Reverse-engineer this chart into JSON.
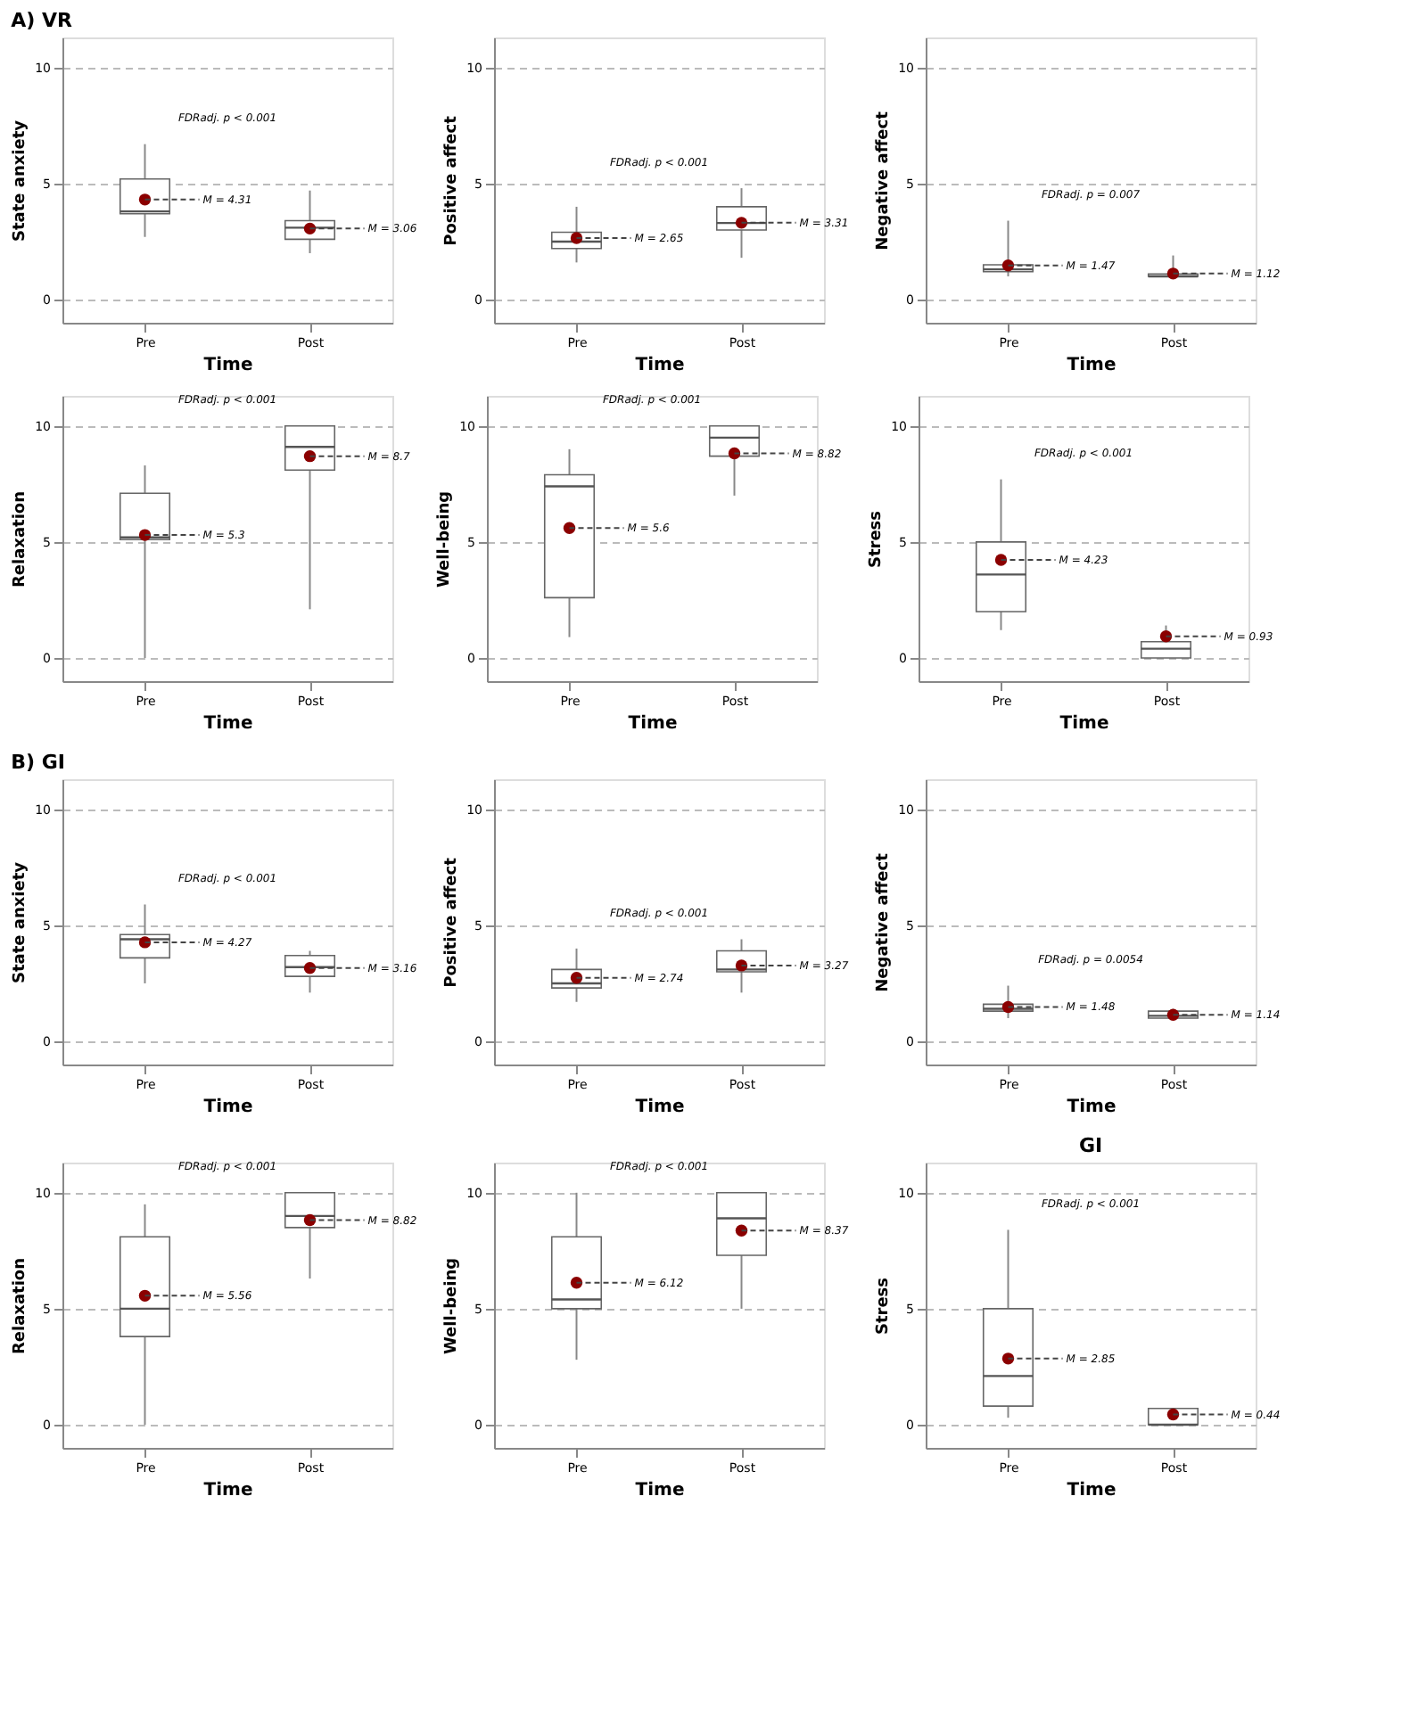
{
  "chart_data": [
    {
      "type": "box",
      "title": "A) VR",
      "categories": [
        "Pre",
        "Post"
      ],
      "xlabel": "Time",
      "ylabel": "State anxiety",
      "ylim": [
        -1,
        11.3
      ],
      "yticks": [
        0,
        5,
        10
      ],
      "grid": "y",
      "boxes": [
        {
          "low": 2.7,
          "q1": 3.7,
          "median": 3.8,
          "q3": 5.2,
          "high": 6.7,
          "mean": 4.31
        },
        {
          "low": 2.0,
          "q1": 2.6,
          "median": 3.1,
          "q3": 3.4,
          "high": 4.7,
          "mean": 3.06
        }
      ],
      "annotations": [
        "FDRadj. p < 0.001",
        {
          "text": "M = 4.31",
          "x": "Pre",
          "y": 4.31
        },
        {
          "text": "M = 3.06",
          "x": "Post",
          "y": 3.06
        }
      ]
    },
    {
      "type": "box",
      "categories": [
        "Pre",
        "Post"
      ],
      "xlabel": "Time",
      "ylabel": "Positive affect",
      "ylim": [
        -1,
        11.3
      ],
      "yticks": [
        0,
        5,
        10
      ],
      "grid": "y",
      "boxes": [
        {
          "low": 1.6,
          "q1": 2.2,
          "median": 2.5,
          "q3": 2.9,
          "high": 4.0,
          "mean": 2.65
        },
        {
          "low": 1.8,
          "q1": 3.0,
          "median": 3.3,
          "q3": 4.0,
          "high": 4.8,
          "mean": 3.31
        }
      ],
      "annotations": [
        "FDRadj. p < 0.001",
        {
          "text": "M = 2.65",
          "x": "Pre",
          "y": 2.65
        },
        {
          "text": "M = 3.31",
          "x": "Post",
          "y": 3.31
        }
      ]
    },
    {
      "type": "box",
      "categories": [
        "Pre",
        "Post"
      ],
      "xlabel": "Time",
      "ylabel": "Negative affect",
      "ylim": [
        -1,
        11.3
      ],
      "yticks": [
        0,
        5,
        10
      ],
      "grid": "y",
      "boxes": [
        {
          "low": 1.0,
          "q1": 1.2,
          "median": 1.3,
          "q3": 1.5,
          "high": 3.4,
          "mean": 1.47
        },
        {
          "low": 1.0,
          "q1": 1.0,
          "median": 1.0,
          "q3": 1.1,
          "high": 1.9,
          "mean": 1.12
        }
      ],
      "annotations": [
        "FDRadj. p = 0.007",
        {
          "text": "M = 1.47",
          "x": "Pre",
          "y": 1.47
        },
        {
          "text": "M = 1.12",
          "x": "Post",
          "y": 1.12
        }
      ]
    },
    {
      "type": "box",
      "categories": [
        "Pre",
        "Post"
      ],
      "xlabel": "Time",
      "ylabel": "Relaxation",
      "ylim": [
        -1,
        11.3
      ],
      "yticks": [
        0,
        5,
        10
      ],
      "grid": "y",
      "boxes": [
        {
          "low": 0.0,
          "q1": 5.1,
          "median": 5.2,
          "q3": 7.1,
          "high": 8.3,
          "mean": 5.3
        },
        {
          "low": 2.1,
          "q1": 8.1,
          "median": 9.1,
          "q3": 10.0,
          "high": 10.0,
          "mean": 8.7
        }
      ],
      "annotations": [
        "FDRadj. p < 0.001",
        {
          "text": "M = 5.3",
          "x": "Pre",
          "y": 5.3
        },
        {
          "text": "M = 8.7",
          "x": "Post",
          "y": 8.7
        }
      ]
    },
    {
      "type": "box",
      "categories": [
        "Pre",
        "Post"
      ],
      "xlabel": "Time",
      "ylabel": "Well-being",
      "ylim": [
        -1,
        11.3
      ],
      "yticks": [
        0,
        5,
        10
      ],
      "grid": "y",
      "boxes": [
        {
          "low": 0.9,
          "q1": 2.6,
          "median": 7.4,
          "q3": 7.9,
          "high": 9.0,
          "mean": 5.6
        },
        {
          "low": 7.0,
          "q1": 8.7,
          "median": 9.5,
          "q3": 10.0,
          "high": 10.0,
          "mean": 8.82
        }
      ],
      "annotations": [
        "FDRadj. p < 0.001",
        {
          "text": "M = 5.6",
          "x": "Pre",
          "y": 5.6
        },
        {
          "text": "M = 8.82",
          "x": "Post",
          "y": 8.82
        }
      ]
    },
    {
      "type": "box",
      "categories": [
        "Pre",
        "Post"
      ],
      "xlabel": "Time",
      "ylabel": "Stress",
      "ylim": [
        -1,
        11.3
      ],
      "yticks": [
        0,
        5,
        10
      ],
      "grid": "y",
      "boxes": [
        {
          "low": 1.2,
          "q1": 2.0,
          "median": 3.6,
          "q3": 5.0,
          "high": 7.7,
          "mean": 4.23
        },
        {
          "low": 0.0,
          "q1": 0.0,
          "median": 0.4,
          "q3": 0.7,
          "high": 1.4,
          "mean": 0.93
        }
      ],
      "annotations": [
        "FDRadj. p < 0.001",
        {
          "text": "M = 4.23",
          "x": "Pre",
          "y": 4.23
        },
        {
          "text": "M = 0.93",
          "x": "Post",
          "y": 0.93
        }
      ]
    },
    {
      "type": "box",
      "title": "B) GI",
      "categories": [
        "Pre",
        "Post"
      ],
      "xlabel": "Time",
      "ylabel": "State anxiety",
      "ylim": [
        -1,
        11.3
      ],
      "yticks": [
        0,
        5,
        10
      ],
      "grid": "y",
      "boxes": [
        {
          "low": 2.5,
          "q1": 3.6,
          "median": 4.4,
          "q3": 4.6,
          "high": 5.9,
          "mean": 4.27
        },
        {
          "low": 2.1,
          "q1": 2.8,
          "median": 3.2,
          "q3": 3.7,
          "high": 3.9,
          "mean": 3.16
        }
      ],
      "annotations": [
        "FDRadj. p < 0.001",
        {
          "text": "M = 4.27",
          "x": "Pre",
          "y": 4.27
        },
        {
          "text": "M = 3.16",
          "x": "Post",
          "y": 3.16
        }
      ]
    },
    {
      "type": "box",
      "categories": [
        "Pre",
        "Post"
      ],
      "xlabel": "Time",
      "ylabel": "Positive affect",
      "ylim": [
        -1,
        11.3
      ],
      "yticks": [
        0,
        5,
        10
      ],
      "grid": "y",
      "boxes": [
        {
          "low": 1.7,
          "q1": 2.3,
          "median": 2.5,
          "q3": 3.1,
          "high": 4.0,
          "mean": 2.74
        },
        {
          "low": 2.1,
          "q1": 3.0,
          "median": 3.1,
          "q3": 3.9,
          "high": 4.4,
          "mean": 3.27
        }
      ],
      "annotations": [
        "FDRadj. p < 0.001",
        {
          "text": "M = 2.74",
          "x": "Pre",
          "y": 2.74
        },
        {
          "text": "M = 3.27",
          "x": "Post",
          "y": 3.27
        }
      ]
    },
    {
      "type": "box",
      "categories": [
        "Pre",
        "Post"
      ],
      "xlabel": "Time",
      "ylabel": "Negative affect",
      "ylim": [
        -1,
        11.3
      ],
      "yticks": [
        0,
        5,
        10
      ],
      "grid": "y",
      "boxes": [
        {
          "low": 1.0,
          "q1": 1.3,
          "median": 1.4,
          "q3": 1.6,
          "high": 2.4,
          "mean": 1.48
        },
        {
          "low": 1.0,
          "q1": 1.0,
          "median": 1.1,
          "q3": 1.3,
          "high": 1.4,
          "mean": 1.14
        }
      ],
      "annotations": [
        "FDRadj. p = 0.0054",
        {
          "text": "M = 1.48",
          "x": "Pre",
          "y": 1.48
        },
        {
          "text": "M = 1.14",
          "x": "Post",
          "y": 1.14
        }
      ]
    },
    {
      "type": "box",
      "categories": [
        "Pre",
        "Post"
      ],
      "xlabel": "Time",
      "ylabel": "Relaxation",
      "ylim": [
        -1,
        11.3
      ],
      "yticks": [
        0,
        5,
        10
      ],
      "grid": "y",
      "boxes": [
        {
          "low": 0.0,
          "q1": 3.8,
          "median": 5.0,
          "q3": 8.1,
          "high": 9.5,
          "mean": 5.56
        },
        {
          "low": 6.3,
          "q1": 8.5,
          "median": 9.0,
          "q3": 10.0,
          "high": 10.0,
          "mean": 8.82
        }
      ],
      "annotations": [
        "FDRadj. p < 0.001",
        {
          "text": "M = 5.56",
          "x": "Pre",
          "y": 5.56
        },
        {
          "text": "M = 8.82",
          "x": "Post",
          "y": 8.82
        }
      ]
    },
    {
      "type": "box",
      "categories": [
        "Pre",
        "Post"
      ],
      "xlabel": "Time",
      "ylabel": "Well-being",
      "ylim": [
        -1,
        11.3
      ],
      "yticks": [
        0,
        5,
        10
      ],
      "grid": "y",
      "boxes": [
        {
          "low": 2.8,
          "q1": 5.0,
          "median": 5.4,
          "q3": 8.1,
          "high": 10.0,
          "mean": 6.12
        },
        {
          "low": 5.0,
          "q1": 7.3,
          "median": 8.9,
          "q3": 10.0,
          "high": 10.0,
          "mean": 8.37
        }
      ],
      "annotations": [
        "FDRadj. p < 0.001",
        {
          "text": "M = 6.12",
          "x": "Pre",
          "y": 6.12
        },
        {
          "text": "M = 8.37",
          "x": "Post",
          "y": 8.37
        }
      ]
    },
    {
      "type": "box",
      "title": "GI",
      "categories": [
        "Pre",
        "Post"
      ],
      "xlabel": "Time",
      "ylabel": "Stress",
      "ylim": [
        -1,
        11.3
      ],
      "yticks": [
        0,
        5,
        10
      ],
      "grid": "y",
      "boxes": [
        {
          "low": 0.3,
          "q1": 0.8,
          "median": 2.1,
          "q3": 5.0,
          "high": 8.4,
          "mean": 2.85
        },
        {
          "low": 0.0,
          "q1": 0.0,
          "median": 0.0,
          "q3": 0.7,
          "high": 0.7,
          "mean": 0.44
        }
      ],
      "annotations": [
        "FDRadj. p < 0.001",
        {
          "text": "M = 2.85",
          "x": "Pre",
          "y": 2.85
        },
        {
          "text": "M = 0.44",
          "x": "Post",
          "y": 0.44
        }
      ]
    }
  ]
}
